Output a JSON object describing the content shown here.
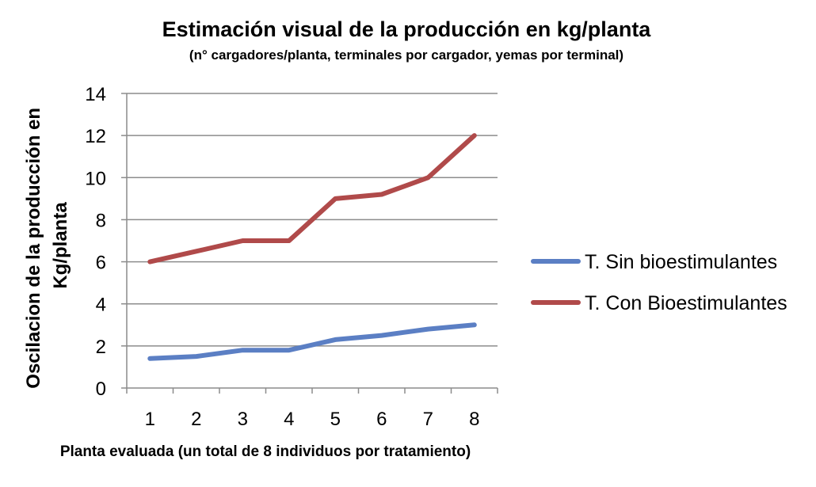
{
  "chart_data": {
    "type": "line",
    "title": "Estimación visual de la producción en kg/planta",
    "subtitle": "(n° cargadores/planta, terminales por cargador, yemas por terminal)",
    "xlabel": "Planta evaluada (un total de 8 individuos por tratamiento)",
    "ylabel_lines": [
      "Oscilacion de la producción en",
      "Kg/planta"
    ],
    "categories": [
      "1",
      "2",
      "3",
      "4",
      "5",
      "6",
      "7",
      "8"
    ],
    "ylim": [
      0,
      14
    ],
    "yticks": [
      0,
      2,
      4,
      6,
      8,
      10,
      12,
      14
    ],
    "grid": true,
    "legend_position": "right",
    "series": [
      {
        "name": "T. Sin bioestimulantes",
        "color": "#5B7FC4",
        "values": [
          1.4,
          1.5,
          1.8,
          1.8,
          2.3,
          2.5,
          2.8,
          3.0
        ]
      },
      {
        "name": "T. Con Bioestimulantes",
        "color": "#B04A4A",
        "values": [
          6.0,
          6.5,
          7.0,
          7.0,
          9.0,
          9.2,
          10.0,
          12.0
        ]
      }
    ]
  }
}
